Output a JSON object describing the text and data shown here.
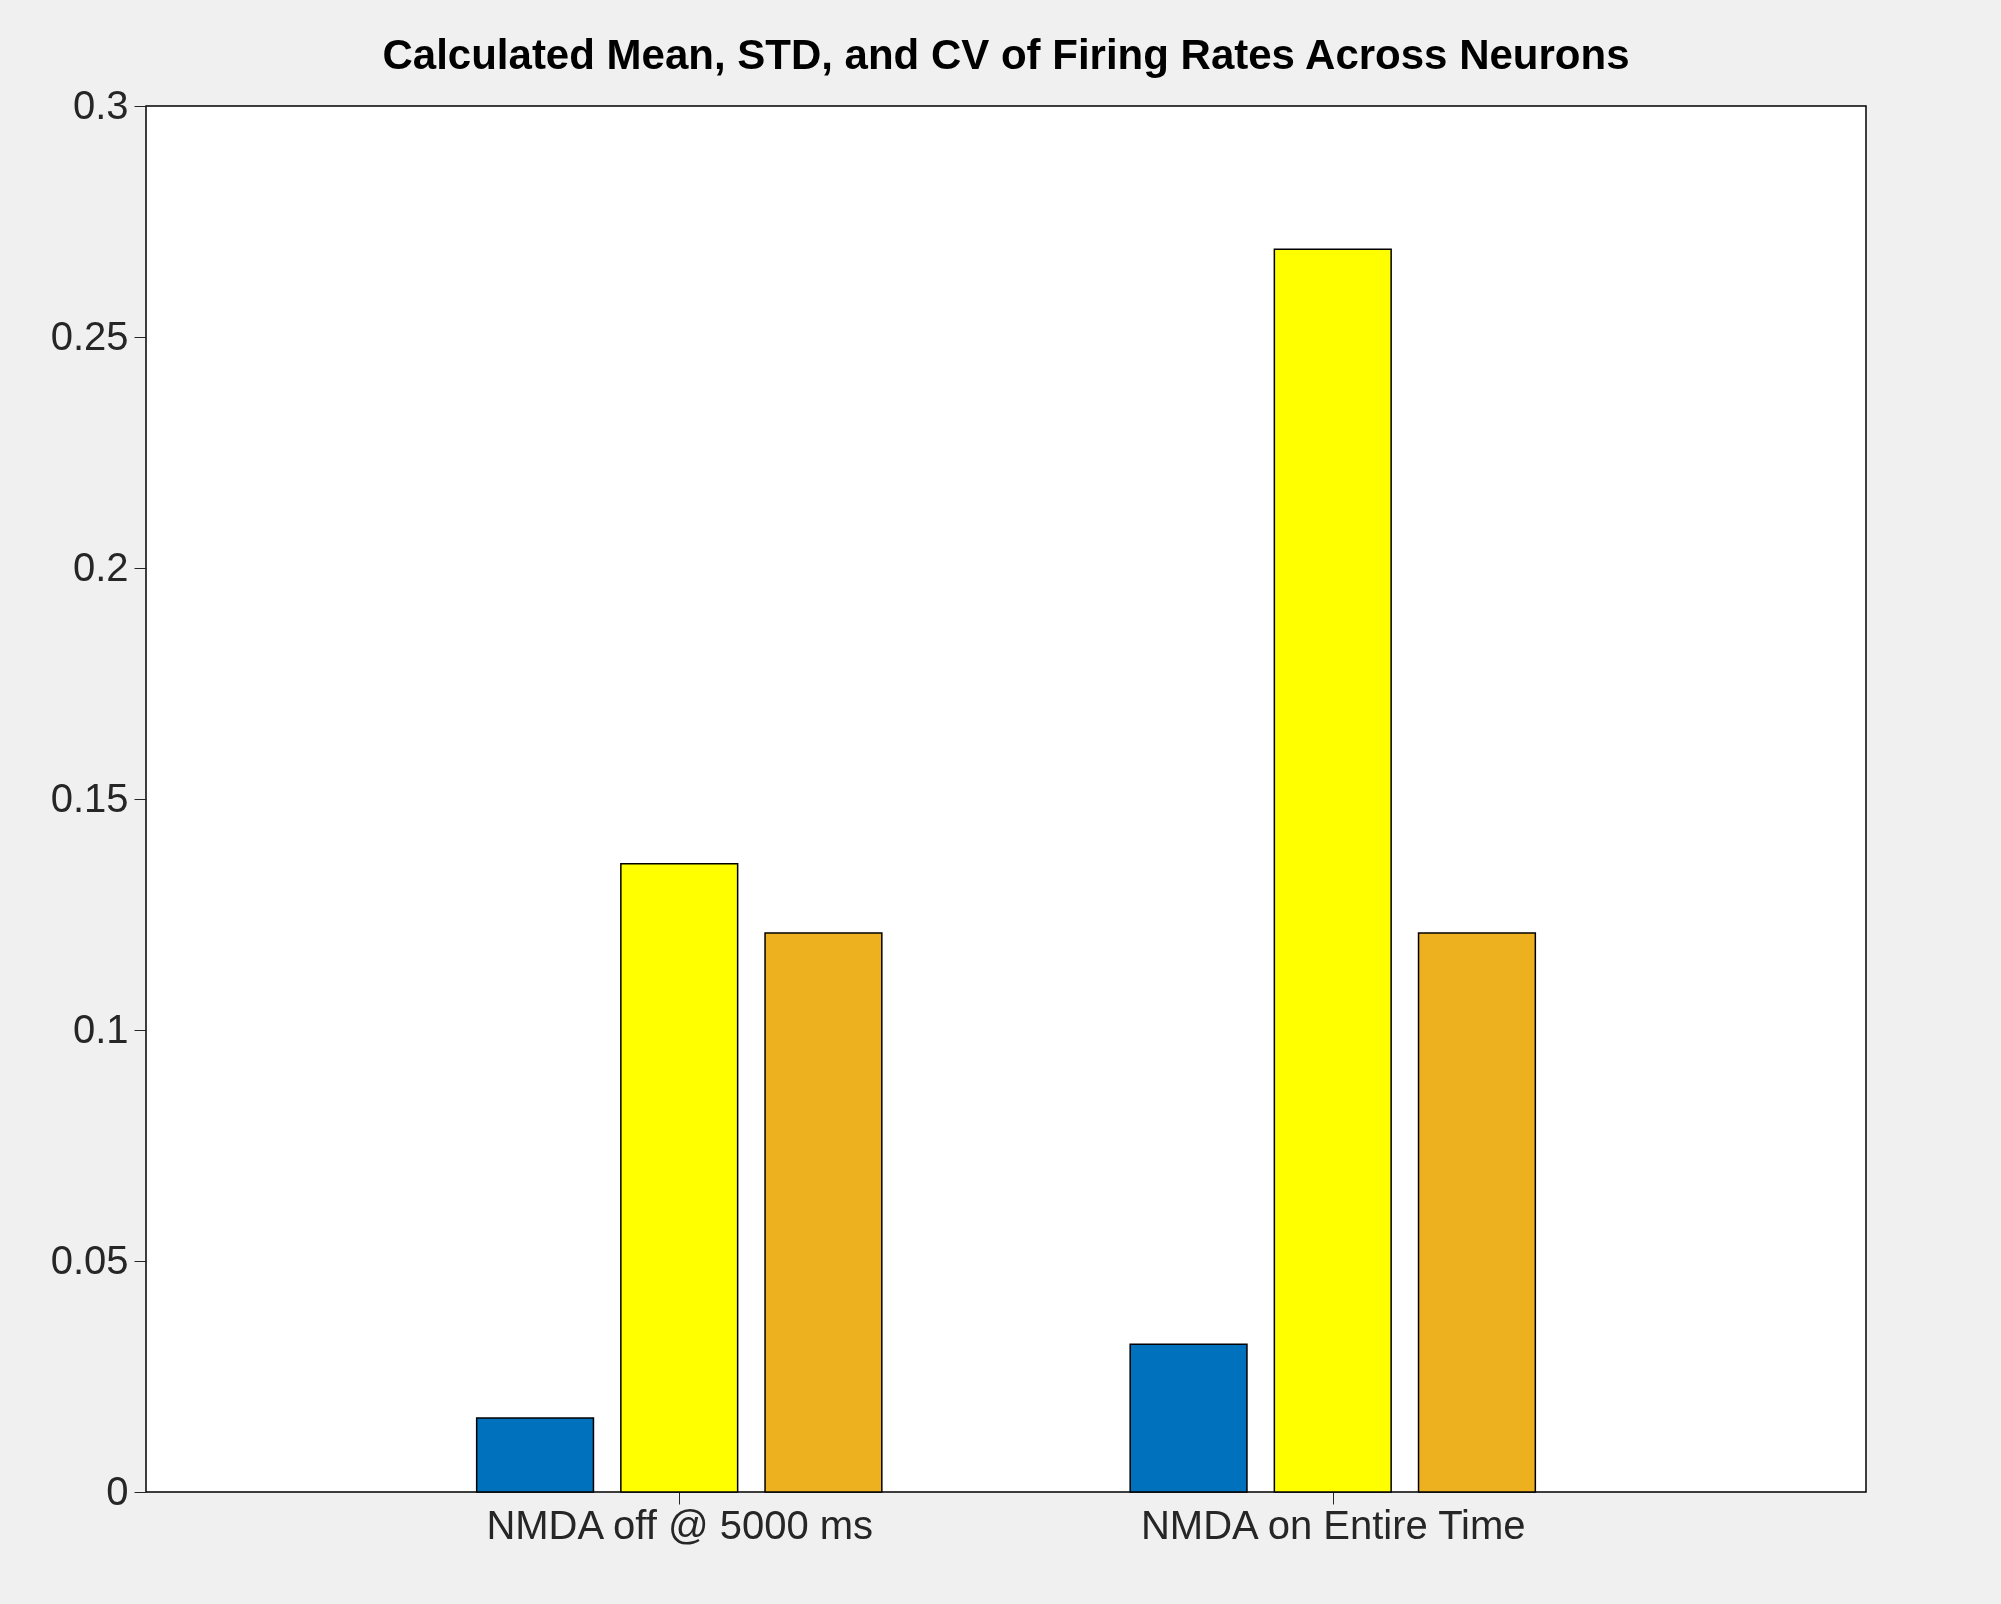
{
  "chart_data": {
    "type": "bar",
    "title": "Calculated Mean, STD, and CV of Firing Rates Across Neurons",
    "categories": [
      "NMDA off @ 5000 ms",
      "NMDA on Entire Time"
    ],
    "series": [
      {
        "color": "#0072bd",
        "values": [
          0.016,
          0.032
        ]
      },
      {
        "color": "#ffff00",
        "values": [
          0.136,
          0.269
        ]
      },
      {
        "color": "#edb120",
        "values": [
          0.121,
          0.121
        ]
      }
    ],
    "ylim": [
      0,
      0.3
    ],
    "yticks": [
      0,
      0.05,
      0.1,
      0.15,
      0.2,
      0.25,
      0.3
    ],
    "grid": false,
    "legend": false
  }
}
